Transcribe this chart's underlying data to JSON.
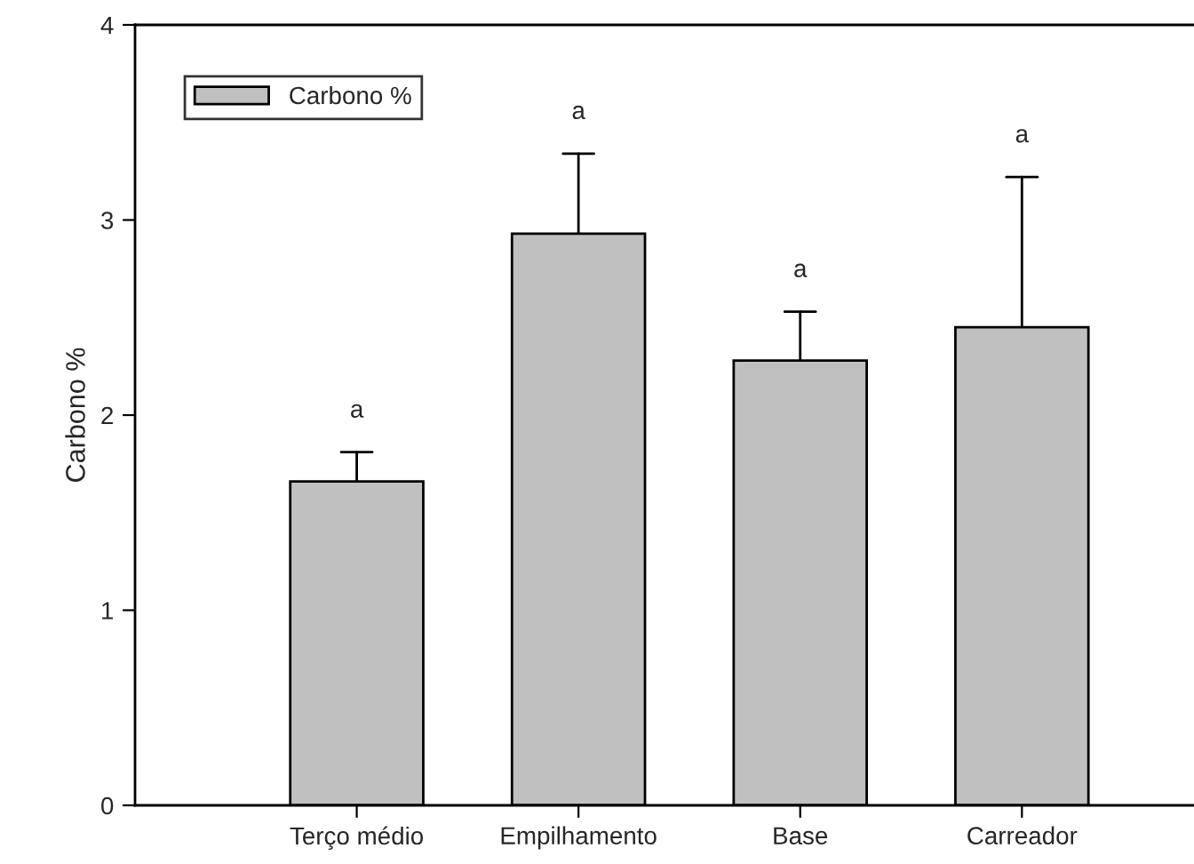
{
  "chart_data": {
    "type": "bar",
    "ylabel": "Carbono %",
    "categories": [
      "Terço médio",
      "Empilhamento",
      "Base",
      "Carreador"
    ],
    "series": [
      {
        "name": "Carbono %",
        "color": "#c0c0c0",
        "values": [
          1.66,
          2.93,
          2.28,
          2.45
        ],
        "errors": [
          [
            1.66,
            1.81
          ],
          [
            2.93,
            3.34
          ],
          [
            2.28,
            2.53
          ],
          [
            2.45,
            3.22
          ]
        ]
      }
    ],
    "ylim": [
      0,
      4
    ],
    "yticks": [
      0,
      1,
      2,
      3,
      4
    ],
    "grid": false,
    "legend": "top left",
    "annotations": [
      "a",
      "a",
      "a",
      "a"
    ]
  }
}
